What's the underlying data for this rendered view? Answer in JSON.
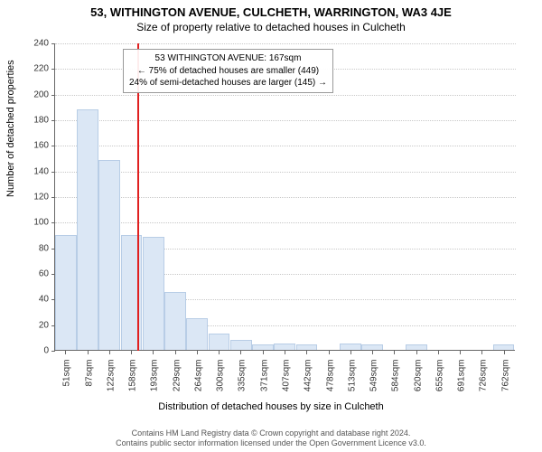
{
  "titles": {
    "main": "53, WITHINGTON AVENUE, CULCHETH, WARRINGTON, WA3 4JE",
    "sub": "Size of property relative to detached houses in Culcheth"
  },
  "axes": {
    "y_title": "Number of detached properties",
    "x_title": "Distribution of detached houses by size in Culcheth"
  },
  "footer": {
    "line1": "Contains HM Land Registry data © Crown copyright and database right 2024.",
    "line2": "Contains public sector information licensed under the Open Government Licence v3.0."
  },
  "info_box": {
    "line1": "53 WITHINGTON AVENUE: 167sqm",
    "line2": "← 75% of detached houses are smaller (449)",
    "line3": "24% of semi-detached houses are larger (145) →"
  },
  "chart": {
    "type": "histogram",
    "background_color": "#ffffff",
    "grid_color": "#c8c8c8",
    "axis_color": "#666666",
    "bar_fill": "#dbe7f5",
    "bar_stroke": "#b8cde6",
    "reference_line_color": "#e02020",
    "ylim": [
      0,
      240
    ],
    "ytick_step": 20,
    "x_min": 33,
    "x_max": 780,
    "x_ticks": [
      51,
      87,
      122,
      158,
      193,
      229,
      264,
      300,
      335,
      371,
      407,
      442,
      478,
      513,
      549,
      584,
      620,
      655,
      691,
      726,
      762
    ],
    "x_unit": "sqm",
    "reference_value": 167,
    "bin_width": 35.5,
    "bins": [
      {
        "start": 33,
        "count": 90
      },
      {
        "start": 68.5,
        "count": 188
      },
      {
        "start": 104,
        "count": 148
      },
      {
        "start": 139.5,
        "count": 90
      },
      {
        "start": 175,
        "count": 88
      },
      {
        "start": 210.5,
        "count": 45
      },
      {
        "start": 246,
        "count": 25
      },
      {
        "start": 281.5,
        "count": 13
      },
      {
        "start": 317,
        "count": 8
      },
      {
        "start": 352.5,
        "count": 4
      },
      {
        "start": 388,
        "count": 5
      },
      {
        "start": 423.5,
        "count": 4
      },
      {
        "start": 459,
        "count": 0
      },
      {
        "start": 494.5,
        "count": 5
      },
      {
        "start": 530,
        "count": 4
      },
      {
        "start": 565.5,
        "count": 0
      },
      {
        "start": 601,
        "count": 4
      },
      {
        "start": 636.5,
        "count": 0
      },
      {
        "start": 672,
        "count": 0
      },
      {
        "start": 707.5,
        "count": 0
      },
      {
        "start": 743,
        "count": 4
      }
    ]
  }
}
